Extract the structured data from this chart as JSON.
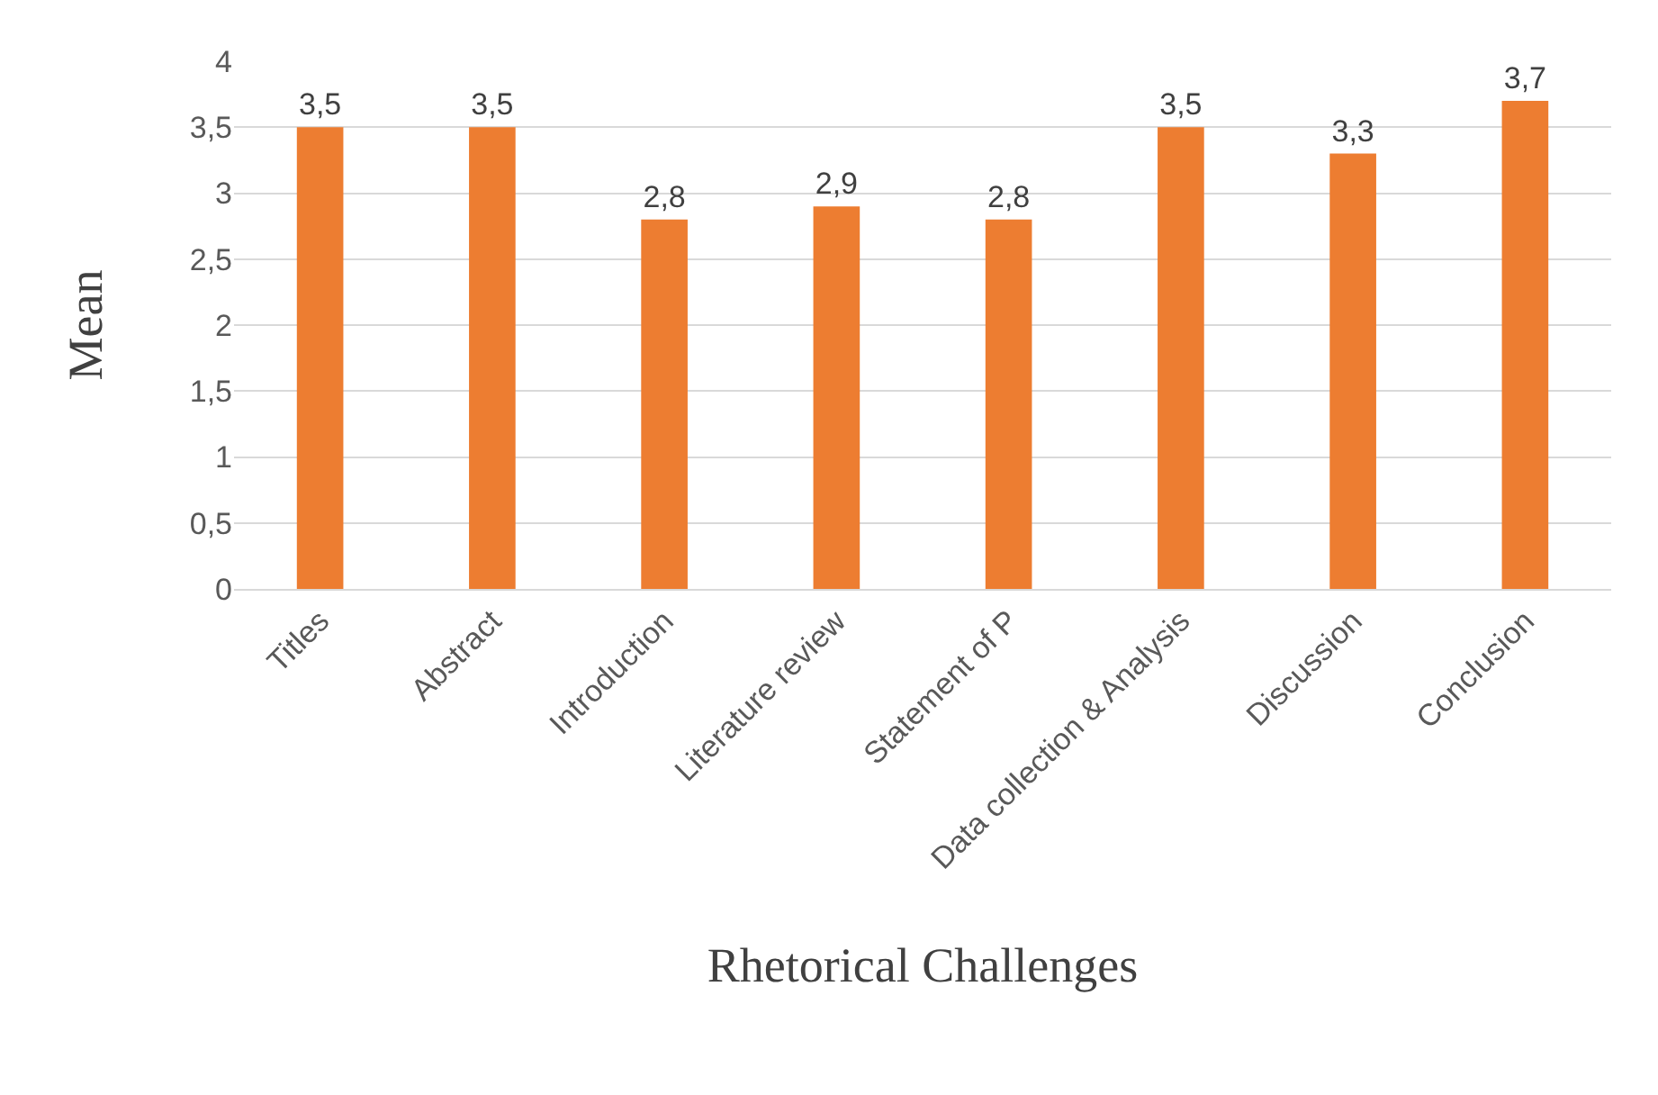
{
  "chart_data": {
    "type": "bar",
    "xlabel": "Rhetorical Challenges",
    "ylabel": "Mean",
    "categories": [
      "Titles",
      "Abstract",
      "Introduction",
      "Literature review",
      "Statement of P",
      "Data collection & Analysis",
      "Discussion",
      "Conclusion"
    ],
    "values": [
      3.5,
      3.5,
      2.8,
      2.9,
      2.8,
      3.5,
      3.3,
      3.7
    ],
    "value_labels": [
      "3,5",
      "3,5",
      "2,8",
      "2,9",
      "2,8",
      "3,5",
      "3,3",
      "3,7"
    ],
    "color": "#ed7d31",
    "ylim": [
      0,
      4
    ],
    "yticks": [
      0,
      {
        "value": 0.5,
        "label": "0,5"
      },
      1,
      {
        "value": 1.5,
        "label": "1,5"
      },
      2,
      {
        "value": 2.5,
        "label": "2,5"
      },
      3,
      {
        "value": 3.5,
        "label": "3,5"
      },
      4
    ],
    "grid": "y",
    "legend": false
  }
}
